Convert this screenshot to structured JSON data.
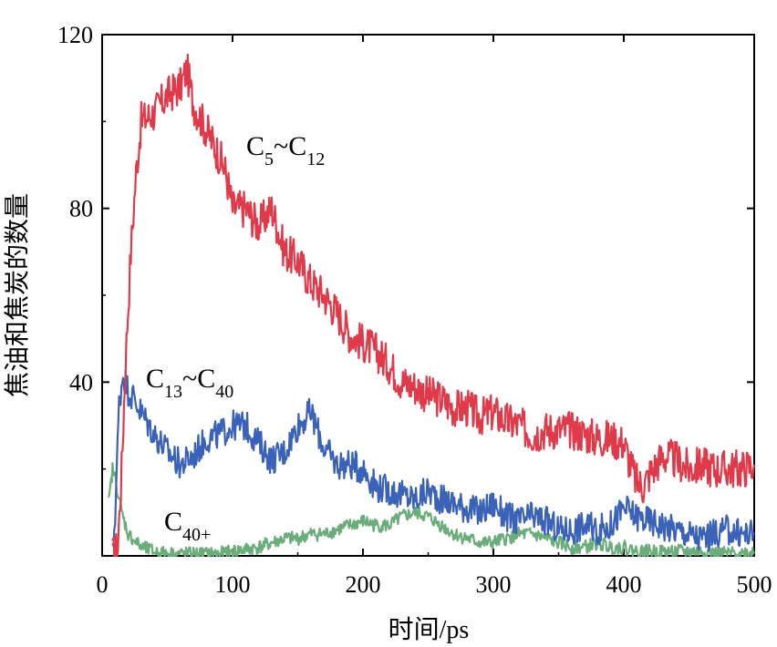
{
  "chart_data": {
    "type": "line",
    "title": "",
    "xlabel": "时间/ps",
    "ylabel": "焦油和焦炭的数量",
    "xlim": [
      0,
      500
    ],
    "ylim": [
      0,
      120
    ],
    "x_ticks": [
      "0",
      "100",
      "200",
      "300",
      "400",
      "500"
    ],
    "y_ticks": [
      "40",
      "80",
      "120"
    ],
    "grid": false,
    "legend": "none",
    "series": [
      {
        "name": "C5~C12",
        "label": {
          "base": "C",
          "sub1": "5",
          "sep": "~",
          "base2": "C",
          "sub2": "12"
        },
        "color": "#e0394a",
        "x": [
          8,
          12,
          15,
          18,
          22,
          26,
          30,
          40,
          50,
          60,
          65,
          70,
          80,
          90,
          95,
          100,
          110,
          120,
          130,
          140,
          150,
          160,
          170,
          180,
          190,
          200,
          210,
          220,
          230,
          240,
          250,
          260,
          270,
          280,
          290,
          300,
          310,
          320,
          330,
          340,
          350,
          360,
          370,
          380,
          390,
          400,
          405,
          410,
          415,
          420,
          430,
          440,
          450,
          460,
          470,
          480,
          490,
          500
        ],
        "values": [
          0,
          2,
          20,
          45,
          70,
          88,
          100,
          102,
          106,
          108,
          112,
          104,
          98,
          92,
          88,
          80,
          80,
          76,
          80,
          70,
          68,
          63,
          60,
          56,
          51,
          49,
          47,
          44,
          40,
          39,
          37,
          36,
          34,
          34,
          32,
          33,
          31,
          30,
          28,
          29,
          29,
          29,
          28,
          27,
          27,
          26,
          21,
          17,
          16,
          19,
          23,
          22,
          20,
          21,
          20,
          20,
          20,
          21
        ]
      },
      {
        "name": "C13~C40",
        "label": {
          "base": "C",
          "sub1": "13",
          "sep": "~",
          "base2": "C",
          "sub2": "40"
        },
        "color": "#3a62b8",
        "x": [
          8,
          10,
          13,
          16,
          20,
          25,
          30,
          40,
          50,
          60,
          70,
          80,
          90,
          100,
          110,
          120,
          130,
          140,
          150,
          160,
          170,
          180,
          190,
          200,
          210,
          220,
          230,
          240,
          250,
          260,
          270,
          280,
          290,
          300,
          310,
          320,
          330,
          340,
          350,
          360,
          370,
          380,
          390,
          400,
          410,
          420,
          430,
          440,
          450,
          460,
          470,
          480,
          490,
          500
        ],
        "values": [
          0,
          10,
          35,
          42,
          38,
          36,
          33,
          28,
          24,
          21,
          23,
          27,
          28,
          30,
          30,
          26,
          22,
          24,
          30,
          33,
          25,
          21,
          21,
          20,
          16,
          15,
          14,
          13,
          15,
          13,
          12,
          11,
          10,
          12,
          9,
          8,
          9,
          8,
          6,
          6,
          7,
          6,
          7,
          11,
          9,
          8,
          7,
          6,
          5,
          4,
          5,
          6,
          5,
          5
        ]
      },
      {
        "name": "C40+",
        "label": {
          "base": "C",
          "sub1": "40+",
          "sep": "",
          "base2": "",
          "sub2": ""
        },
        "color": "#6aad7b",
        "x": [
          5,
          8,
          10,
          15,
          20,
          30,
          40,
          50,
          60,
          70,
          80,
          90,
          100,
          110,
          120,
          130,
          140,
          150,
          160,
          170,
          180,
          190,
          200,
          210,
          220,
          230,
          240,
          250,
          260,
          270,
          280,
          290,
          300,
          310,
          320,
          330,
          340,
          350,
          360,
          370,
          380,
          390,
          400,
          410,
          420,
          430,
          440,
          450,
          460,
          470,
          480,
          490,
          500
        ],
        "values": [
          12,
          20,
          18,
          10,
          5,
          2,
          1,
          0.5,
          0.5,
          0.5,
          0.5,
          0.5,
          1,
          1.5,
          2,
          3,
          4,
          4,
          5,
          5,
          6,
          7,
          8,
          7,
          7,
          9,
          10,
          9,
          7,
          5,
          4,
          3,
          3,
          4,
          5,
          5,
          4,
          3,
          2,
          2,
          3,
          2,
          2,
          1,
          1,
          1,
          1,
          1,
          1,
          0.5,
          0.5,
          0.5,
          1
        ]
      }
    ]
  }
}
